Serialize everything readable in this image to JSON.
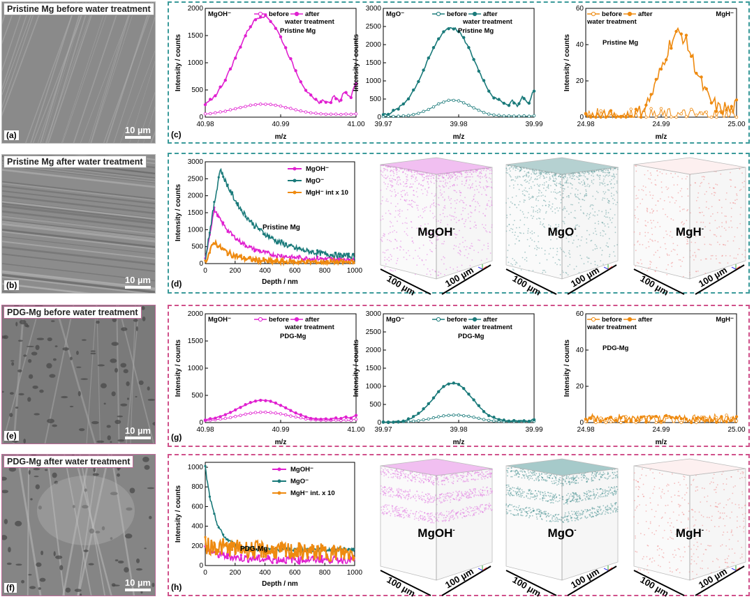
{
  "figure": {
    "colors": {
      "mgoh": "#e020d0",
      "mgo": "#1a7a7a",
      "mgh": "#ee8a10",
      "tealbox": "#3a9a9a",
      "pinkbox": "#d0508a"
    },
    "sem_panels": [
      {
        "title": "Pristine Mg before water treatment",
        "label": "(a)",
        "scale": "10 µm",
        "tone": "pristine-before"
      },
      {
        "title": "Pristine Mg after water treatment",
        "label": "(b)",
        "scale": "10 µm",
        "tone": "pristine-after"
      },
      {
        "title": "PDG-Mg before water treatment",
        "label": "(e)",
        "scale": "10 µm",
        "tone": "pdg-before"
      },
      {
        "title": "PDG-Mg after water treatment",
        "label": "(f)",
        "scale": "10 µm",
        "tone": "pdg-after"
      }
    ],
    "panel_labels": {
      "c": "(c)",
      "d": "(d)",
      "g": "(g)",
      "h": "(h)"
    }
  },
  "chart_data": [
    {
      "id": "c1",
      "type": "line",
      "panel": "c",
      "title": "MgOH⁻",
      "sample": "Pristine Mg",
      "legend": [
        "before",
        "after"
      ],
      "legend_note": "water treatment",
      "xlabel": "m/z",
      "ylabel": "Intensity / counts",
      "xlim": [
        40.98,
        41.0
      ],
      "ylim": [
        0,
        2000
      ],
      "xticks": [
        "40.98",
        "40.99",
        "41.00"
      ],
      "yticks": [
        0,
        500,
        1000,
        1500,
        2000
      ],
      "series": [
        {
          "name": "before",
          "color": "#e020d0",
          "open": true,
          "peak": 200,
          "center": 40.9877,
          "width": 0.0035,
          "base": 40,
          "tail": 60
        },
        {
          "name": "after",
          "color": "#e020d0",
          "open": false,
          "peak": 1780,
          "center": 40.9876,
          "width": 0.0034,
          "base": 80,
          "tail": 620
        }
      ]
    },
    {
      "id": "c2",
      "type": "line",
      "panel": "c",
      "title": "MgO⁻",
      "sample": "Pristine Mg",
      "legend": [
        "before",
        "after"
      ],
      "legend_note": "water treatment",
      "xlabel": "m/z",
      "ylabel": "Intensity / counts",
      "xlim": [
        39.97,
        39.99
      ],
      "ylim": [
        0,
        3000
      ],
      "xticks": [
        "39.97",
        "39.98",
        "39.99"
      ],
      "yticks": [
        0,
        500,
        1000,
        1500,
        2000,
        2500,
        3000
      ],
      "series": [
        {
          "name": "before",
          "color": "#1a7a7a",
          "open": true,
          "peak": 450,
          "center": 39.9792,
          "width": 0.0025,
          "base": 20,
          "tail": 40
        },
        {
          "name": "after",
          "color": "#1a7a7a",
          "open": false,
          "peak": 2450,
          "center": 39.979,
          "width": 0.0032,
          "base": 20,
          "tail": 700
        }
      ]
    },
    {
      "id": "c3",
      "type": "line",
      "panel": "c",
      "title": "MgH⁻",
      "sample": "Pristine Mg",
      "legend": [
        "before",
        "after"
      ],
      "legend_note": "water treatment",
      "xlabel": "m/z",
      "ylabel": "Intensity / counts",
      "xlim": [
        24.98,
        25.0
      ],
      "ylim": [
        0,
        60
      ],
      "xticks": [
        "24.98",
        "24.99",
        "25.00"
      ],
      "yticks": [
        0,
        20,
        40,
        60
      ],
      "series": [
        {
          "name": "before",
          "color": "#ee8a10",
          "open": true,
          "peak": 0,
          "center": 24.992,
          "width": 0.003,
          "base": 1,
          "tail": 1
        },
        {
          "name": "after",
          "color": "#ee8a10",
          "open": false,
          "peak": 46,
          "center": 24.9923,
          "width": 0.0022,
          "base": 0,
          "tail": 6
        }
      ]
    },
    {
      "id": "d",
      "type": "line",
      "panel": "d",
      "sample": "Pristine Mg",
      "legend": [
        "MgOH⁻",
        "MgO⁻",
        "MgH⁻ int x 10"
      ],
      "xlabel": "Depth / nm",
      "ylabel": "Intensity / counts",
      "xlim": [
        0,
        1000
      ],
      "ylim": [
        0,
        3000
      ],
      "xticks": [
        "0",
        "200",
        "400",
        "600",
        "800",
        "1000"
      ],
      "yticks": [
        0,
        500,
        1000,
        1500,
        2000,
        2500,
        3000
      ],
      "series": [
        {
          "name": "MgOH⁻",
          "color": "#e020d0",
          "peak": 1600,
          "peak_at": 60,
          "decay": 170,
          "floor": 120,
          "noise": 60
        },
        {
          "name": "MgO⁻",
          "color": "#1a7a7a",
          "peak": 2800,
          "peak_at": 100,
          "decay": 230,
          "floor": 160,
          "noise": 80
        },
        {
          "name": "MgH⁻ int x 10",
          "color": "#ee8a10",
          "peak": 650,
          "peak_at": 60,
          "decay": 120,
          "floor": 40,
          "noise": 80
        }
      ]
    },
    {
      "id": "g1",
      "type": "line",
      "panel": "g",
      "title": "MgOH⁻",
      "sample": "PDG-Mg",
      "legend": [
        "before",
        "after"
      ],
      "legend_note": "water treatment",
      "xlabel": "m/z",
      "ylabel": "Intensity / counts",
      "xlim": [
        40.98,
        41.0
      ],
      "ylim": [
        0,
        2000
      ],
      "xticks": [
        "40.98",
        "40.99",
        "41.00"
      ],
      "yticks": [
        0,
        500,
        1000,
        1500,
        2000
      ],
      "series": [
        {
          "name": "before",
          "color": "#e020d0",
          "open": true,
          "peak": 170,
          "center": 40.9878,
          "width": 0.0035,
          "base": 20,
          "tail": 60
        },
        {
          "name": "after",
          "color": "#e020d0",
          "open": false,
          "peak": 380,
          "center": 40.9876,
          "width": 0.0032,
          "base": 30,
          "tail": 130
        }
      ]
    },
    {
      "id": "g2",
      "type": "line",
      "panel": "g",
      "title": "MgO⁻",
      "sample": "PDG-Mg",
      "legend": [
        "before",
        "after"
      ],
      "legend_note": "water treatment",
      "xlabel": "m/z",
      "ylabel": "Intensity / counts",
      "xlim": [
        39.97,
        39.99
      ],
      "ylim": [
        0,
        3000
      ],
      "xticks": [
        "39.97",
        "39.98",
        "39.99"
      ],
      "yticks": [
        0,
        500,
        1000,
        1500,
        2000,
        2500,
        3000
      ],
      "series": [
        {
          "name": "before",
          "color": "#1a7a7a",
          "open": true,
          "peak": 200,
          "center": 39.9795,
          "width": 0.0028,
          "base": 10,
          "tail": 40
        },
        {
          "name": "after",
          "color": "#1a7a7a",
          "open": false,
          "peak": 1080,
          "center": 39.9792,
          "width": 0.0026,
          "base": 10,
          "tail": 80
        }
      ]
    },
    {
      "id": "g3",
      "type": "line",
      "panel": "g",
      "title": "MgH⁻",
      "sample": "PDG-Mg",
      "legend": [
        "before",
        "after"
      ],
      "legend_note": "water treatment",
      "xlabel": "m/z",
      "ylabel": "Intensity / counts",
      "xlim": [
        24.98,
        25.0
      ],
      "ylim": [
        0,
        60
      ],
      "xticks": [
        "24.98",
        "24.99",
        "25.00"
      ],
      "yticks": [
        0,
        20,
        40,
        60
      ],
      "series": [
        {
          "name": "before",
          "color": "#ee8a10",
          "open": true,
          "peak": 0,
          "center": 24.99,
          "width": 0.003,
          "base": 1,
          "tail": 1
        },
        {
          "name": "after",
          "color": "#ee8a10",
          "open": false,
          "peak": 0,
          "center": 24.99,
          "width": 0.003,
          "base": 2,
          "tail": 2,
          "noise": 2
        }
      ]
    },
    {
      "id": "h",
      "type": "line",
      "panel": "h",
      "sample": "PDG-Mg",
      "legend": [
        "MgOH⁻",
        "MgO⁻",
        "MgH⁻ int. x 10"
      ],
      "xlabel": "Depth / nm",
      "ylabel": "Intensity / counts",
      "xlim": [
        0,
        1000
      ],
      "ylim": [
        0,
        1050
      ],
      "xticks": [
        "0",
        "200",
        "400",
        "600",
        "800",
        "1000"
      ],
      "yticks": [
        0,
        200,
        400,
        600,
        800,
        1000
      ],
      "series": [
        {
          "name": "MgOH⁻",
          "color": "#e020d0",
          "peak": 180,
          "peak_at": 0,
          "decay": 120,
          "floor": 60,
          "noise": 40
        },
        {
          "name": "MgO⁻",
          "color": "#1a7a7a",
          "peak": 1000,
          "peak_at": 0,
          "decay": 70,
          "floor": 160,
          "noise": 20
        },
        {
          "name": "MgH⁻ int. x 10",
          "color": "#ee8a10",
          "peak": 200,
          "peak_at": 0,
          "decay": 600,
          "floor": 110,
          "noise": 90
        }
      ]
    }
  ],
  "cubes": [
    {
      "panel": "d",
      "label": "MgOH",
      "sup": "-",
      "color": "#e070e0",
      "edge1": "100 µm",
      "edge2": "100 µm",
      "density": "top"
    },
    {
      "panel": "d",
      "label": "MgO",
      "sup": "-",
      "color": "#5a9a9a",
      "edge1": "100 µm",
      "edge2": "100 µm",
      "density": "top"
    },
    {
      "panel": "d",
      "label": "MgH",
      "sup": "-",
      "color": "#f08080",
      "edge1": "100 µm",
      "edge2": "100 µm",
      "density": "sparse"
    },
    {
      "panel": "h",
      "label": "MgOH",
      "sup": "-",
      "color": "#e070e0",
      "edge1": "100 µm",
      "edge2": "100 µm",
      "density": "bands"
    },
    {
      "panel": "h",
      "label": "MgO",
      "sup": "-",
      "color": "#3a8a8a",
      "edge1": "100 µm",
      "edge2": "100 µm",
      "density": "bands"
    },
    {
      "panel": "h",
      "label": "MgH",
      "sup": "-",
      "color": "#f08080",
      "edge1": "100 µm",
      "edge2": "100 µm",
      "density": "sparse"
    }
  ]
}
